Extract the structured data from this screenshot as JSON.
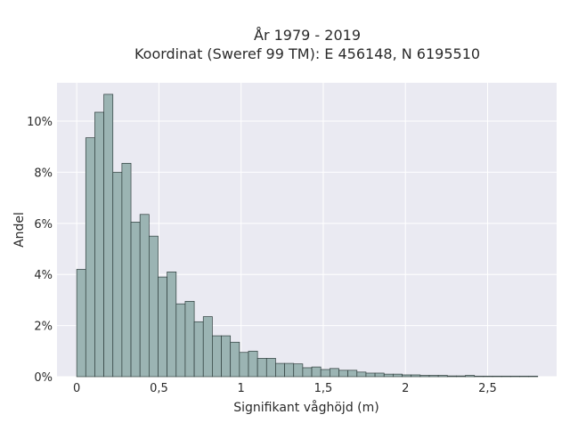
{
  "chart_data": {
    "type": "bar",
    "title_line1": "År 1979 - 2019",
    "title_line2": "Koordinat (Sweref 99 TM): E 456148, N 6195510",
    "xlabel": "Signifikant våghöjd (m)",
    "ylabel": "Andel",
    "xlim": [
      -0.12,
      2.92
    ],
    "ylim": [
      0,
      11.5
    ],
    "x_ticks": [
      {
        "value": 0,
        "label": "0"
      },
      {
        "value": 0.5,
        "label": "0,5"
      },
      {
        "value": 1,
        "label": "1"
      },
      {
        "value": 1.5,
        "label": "1,5"
      },
      {
        "value": 2,
        "label": "2"
      },
      {
        "value": 2.5,
        "label": "2,5"
      }
    ],
    "y_ticks": [
      {
        "value": 0,
        "label": "0%"
      },
      {
        "value": 2,
        "label": "2%"
      },
      {
        "value": 4,
        "label": "4%"
      },
      {
        "value": 6,
        "label": "6%"
      },
      {
        "value": 8,
        "label": "8%"
      },
      {
        "value": 10,
        "label": "10%"
      }
    ],
    "bin_width": 0.055,
    "bin_start": 0,
    "values": [
      4.2,
      9.35,
      10.35,
      11.05,
      8.0,
      8.35,
      6.05,
      6.35,
      5.5,
      3.9,
      4.1,
      2.85,
      2.95,
      2.15,
      2.35,
      1.6,
      1.6,
      1.35,
      0.95,
      1.0,
      0.72,
      0.72,
      0.52,
      0.52,
      0.5,
      0.35,
      0.38,
      0.28,
      0.32,
      0.25,
      0.25,
      0.18,
      0.14,
      0.14,
      0.1,
      0.1,
      0.07,
      0.07,
      0.05,
      0.05,
      0.05,
      0.03,
      0.03,
      0.05,
      0.02,
      0.02,
      0.02,
      0.02,
      0.02,
      0.02,
      0.02
    ],
    "grid": true,
    "colors": {
      "bar_fill": "#9bb4b3",
      "bar_stroke": "#2f3e3d",
      "plot_background": "#eaeaf2",
      "grid": "#ffffff"
    }
  }
}
